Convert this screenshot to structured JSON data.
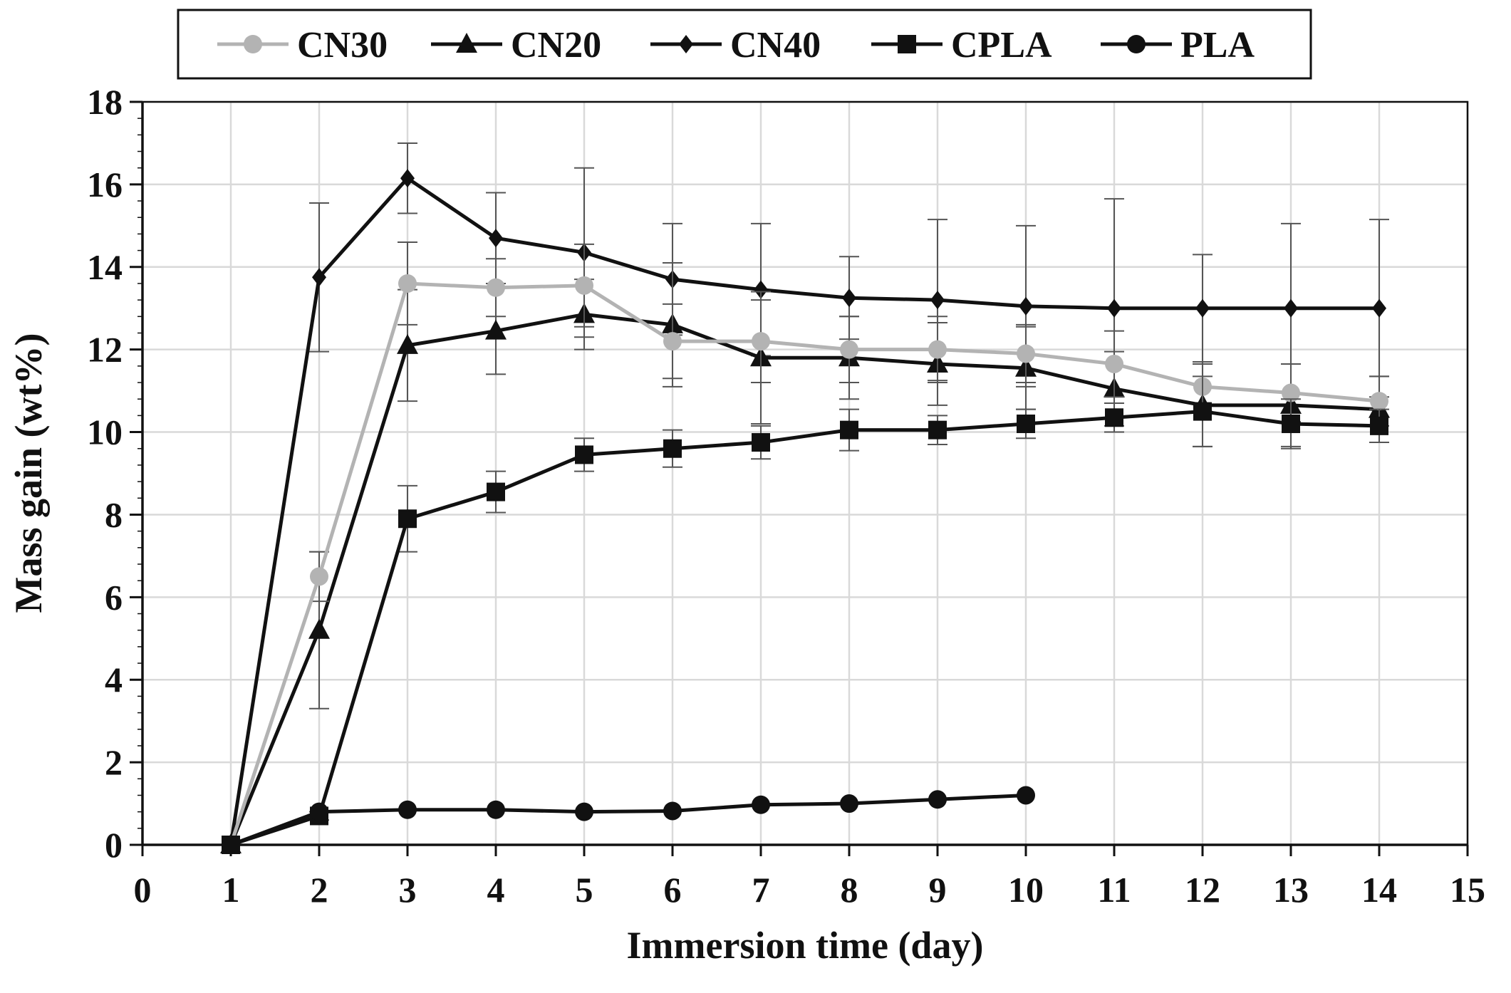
{
  "chart_data": {
    "type": "line",
    "title": "",
    "xlabel": "Immersion time (day)",
    "ylabel": "Mass gain (wt%)",
    "xlim": [
      0,
      15
    ],
    "ylim": [
      0,
      18
    ],
    "xticks": [
      0,
      1,
      2,
      3,
      4,
      5,
      6,
      7,
      8,
      9,
      10,
      11,
      12,
      13,
      14,
      15
    ],
    "yticks": [
      0,
      2,
      4,
      6,
      8,
      10,
      12,
      14,
      16,
      18
    ],
    "grid": true,
    "legend_position": "top",
    "series": [
      {
        "name": "CN30",
        "color": "#b3b3b3",
        "marker": "circle",
        "x": [
          1,
          2,
          3,
          4,
          5,
          6,
          7,
          8,
          9,
          10,
          11,
          12,
          13,
          14
        ],
        "y": [
          0,
          6.5,
          13.6,
          13.5,
          13.55,
          12.2,
          12.2,
          12.0,
          12.0,
          11.9,
          11.65,
          11.1,
          10.95,
          10.75
        ],
        "err": [
          0,
          0.6,
          1.0,
          0.7,
          1.0,
          0.9,
          1.0,
          0.8,
          0.8,
          0.7,
          0.8,
          0.6,
          0.7,
          0.6
        ]
      },
      {
        "name": "CN20",
        "color": "#111111",
        "marker": "triangle",
        "x": [
          1,
          2,
          3,
          4,
          5,
          6,
          7,
          8,
          9,
          10,
          11,
          12,
          13,
          14
        ],
        "y": [
          0,
          5.2,
          12.1,
          12.45,
          12.85,
          12.6,
          11.8,
          11.8,
          11.65,
          11.55,
          11.05,
          10.65,
          10.65,
          10.55
        ],
        "err": [
          0,
          1.9,
          1.35,
          1.05,
          0.85,
          1.5,
          1.6,
          1.0,
          1.0,
          1.0,
          0.9,
          1.0,
          1.0,
          0.8
        ]
      },
      {
        "name": "CN40",
        "color": "#111111",
        "marker": "diamond",
        "x": [
          1,
          2,
          3,
          4,
          5,
          6,
          7,
          8,
          9,
          10,
          11,
          12,
          13,
          14
        ],
        "y": [
          0,
          13.75,
          16.15,
          14.7,
          14.35,
          13.7,
          13.45,
          13.25,
          13.2,
          13.05,
          13.0,
          13.0,
          13.0,
          13.0
        ],
        "err": [
          0,
          1.8,
          0.85,
          1.1,
          2.05,
          1.35,
          1.6,
          1.0,
          1.95,
          1.95,
          2.65,
          1.3,
          2.05,
          2.15
        ]
      },
      {
        "name": "CPLA",
        "color": "#111111",
        "marker": "square",
        "x": [
          1,
          2,
          3,
          4,
          5,
          6,
          7,
          8,
          9,
          10,
          11,
          12,
          13,
          14
        ],
        "y": [
          0,
          0.7,
          7.9,
          8.55,
          9.45,
          9.6,
          9.75,
          10.05,
          10.05,
          10.2,
          10.35,
          10.5,
          10.2,
          10.15
        ],
        "err": [
          0,
          0.1,
          0.8,
          0.5,
          0.4,
          0.45,
          0.4,
          0.5,
          0.35,
          0.35,
          0.35,
          0.85,
          0.6,
          0.4
        ]
      },
      {
        "name": "PLA",
        "color": "#111111",
        "marker": "circle",
        "x": [
          1,
          2,
          3,
          4,
          5,
          6,
          7,
          8,
          9,
          10
        ],
        "y": [
          0,
          0.8,
          0.85,
          0.85,
          0.8,
          0.82,
          0.97,
          1.0,
          1.1,
          1.2
        ],
        "err": [
          0,
          0,
          0,
          0,
          0,
          0,
          0,
          0,
          0,
          0
        ]
      }
    ]
  }
}
